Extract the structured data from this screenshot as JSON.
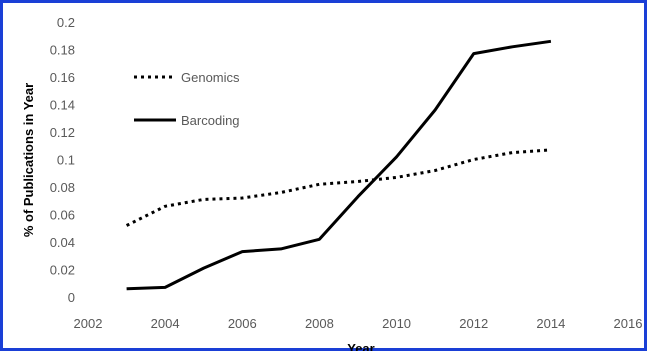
{
  "chart_data": {
    "type": "line",
    "title": "",
    "xlabel": "Year",
    "ylabel": "% of Publications in Year",
    "xlim": [
      2002,
      2016
    ],
    "ylim": [
      0,
      0.2
    ],
    "x_ticks": [
      "2002",
      "2004",
      "2006",
      "2008",
      "2010",
      "2012",
      "2014",
      "2016"
    ],
    "y_ticks": [
      "0",
      "0.02",
      "0.04",
      "0.06",
      "0.08",
      "0.1",
      "0.12",
      "0.14",
      "0.16",
      "0.18",
      "0.2"
    ],
    "grid": false,
    "legend_position": "top-left",
    "series": [
      {
        "name": "Genomics",
        "style": "dotted",
        "color": "#000000",
        "x": [
          2003,
          2004,
          2005,
          2006,
          2007,
          2008,
          2009,
          2010,
          2011,
          2012,
          2013,
          2014
        ],
        "y": [
          0.052,
          0.066,
          0.071,
          0.072,
          0.076,
          0.082,
          0.084,
          0.087,
          0.092,
          0.1,
          0.105,
          0.107
        ]
      },
      {
        "name": "Barcoding",
        "style": "solid",
        "color": "#000000",
        "x": [
          2003,
          2004,
          2005,
          2006,
          2007,
          2008,
          2009,
          2010,
          2011,
          2012,
          2013,
          2014
        ],
        "y": [
          0.006,
          0.007,
          0.021,
          0.033,
          0.035,
          0.042,
          0.073,
          0.102,
          0.136,
          0.177,
          0.182,
          0.186
        ]
      }
    ]
  }
}
